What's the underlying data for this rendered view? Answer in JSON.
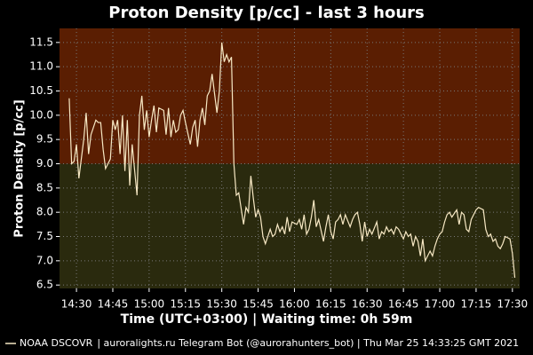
{
  "chart_data": {
    "type": "line",
    "title": "Proton Density [p/cc] - last 3 hours",
    "y_label": "Proton Density [p/cc]",
    "x_label": "Time (UTC+03:00) | Waiting time: 0h 59m",
    "footer": "| auroralights.ru Telegram Bot (@aurorahunters_bot) | Thu Mar 25 14:33:25 GMT 2021",
    "threshold": 9,
    "above_color": "#5a1e02",
    "below_color": "#2a2a0e",
    "grid": true,
    "xlim": [
      863,
      1053
    ],
    "ylim": [
      6.43,
      11.79
    ],
    "xticks": [
      {
        "value": 870,
        "label": "14:30"
      },
      {
        "value": 885,
        "label": "14:45"
      },
      {
        "value": 900,
        "label": "15:00"
      },
      {
        "value": 915,
        "label": "15:15"
      },
      {
        "value": 930,
        "label": "15:30"
      },
      {
        "value": 945,
        "label": "15:45"
      },
      {
        "value": 960,
        "label": "16:00"
      },
      {
        "value": 975,
        "label": "16:15"
      },
      {
        "value": 990,
        "label": "16:30"
      },
      {
        "value": 1005,
        "label": "16:45"
      },
      {
        "value": 1020,
        "label": "17:00"
      },
      {
        "value": 1035,
        "label": "17:15"
      },
      {
        "value": 1050,
        "label": "17:30"
      }
    ],
    "yticks": [
      6.5,
      {
        "value": 7,
        "label": "7.0"
      },
      7.5,
      {
        "value": 8,
        "label": "8.0"
      },
      8.5,
      {
        "value": 9,
        "label": "9.0"
      },
      9.5,
      {
        "value": 10,
        "label": "10.0"
      },
      10.5,
      {
        "value": 11,
        "label": "11.0"
      },
      11.5
    ],
    "x": [
      867,
      868,
      869,
      870,
      871,
      873,
      874,
      875,
      876,
      877,
      878,
      879,
      880,
      881,
      882,
      884,
      885,
      886,
      887,
      888,
      889,
      890,
      891,
      892,
      893,
      895,
      896,
      897,
      898,
      899,
      900,
      901,
      902,
      903,
      904,
      906,
      907,
      908,
      909,
      910,
      911,
      912,
      913,
      914,
      915,
      917,
      918,
      919,
      920,
      921,
      922,
      923,
      924,
      925,
      926,
      928,
      929,
      930,
      931,
      932,
      933,
      934,
      935,
      936,
      937,
      939,
      940,
      941,
      942,
      943,
      944,
      945,
      946,
      947,
      948,
      950,
      951,
      952,
      953,
      954,
      955,
      956,
      957,
      958,
      959,
      961,
      962,
      963,
      964,
      965,
      966,
      967,
      968,
      969,
      970,
      972,
      973,
      974,
      975,
      976,
      977,
      978,
      979,
      980,
      981,
      983,
      984,
      985,
      986,
      987,
      988,
      989,
      990,
      991,
      992,
      994,
      995,
      996,
      997,
      998,
      999,
      1000,
      1001,
      1002,
      1003,
      1005,
      1006,
      1007,
      1008,
      1009,
      1010,
      1011,
      1012,
      1013,
      1014,
      1016,
      1017,
      1018,
      1019,
      1020,
      1021,
      1022,
      1023,
      1024,
      1025,
      1027,
      1028,
      1029,
      1030,
      1031,
      1032,
      1033,
      1034,
      1035,
      1036,
      1038,
      1039,
      1040,
      1041,
      1042,
      1043,
      1044,
      1045,
      1046,
      1047,
      1049,
      1050,
      1051
    ],
    "series": [
      {
        "name": "NOAA DSCOVR",
        "color": "#f7e8c4",
        "values": [
          10.35,
          9.0,
          9.05,
          9.4,
          8.7,
          9.5,
          10.05,
          9.2,
          9.6,
          9.75,
          9.9,
          9.85,
          9.85,
          9.3,
          8.9,
          9.1,
          9.9,
          9.7,
          9.9,
          9.2,
          10.0,
          8.85,
          9.9,
          8.55,
          9.4,
          8.35,
          10.0,
          10.4,
          9.7,
          10.1,
          9.55,
          9.9,
          10.2,
          9.65,
          10.15,
          10.1,
          9.6,
          10.15,
          9.55,
          9.9,
          9.65,
          9.7,
          10.0,
          10.1,
          9.85,
          9.4,
          9.75,
          9.9,
          9.35,
          9.9,
          10.15,
          9.8,
          10.4,
          10.5,
          10.85,
          10.05,
          10.5,
          11.5,
          11.1,
          11.25,
          11.1,
          11.2,
          9.0,
          8.35,
          8.4,
          7.75,
          8.1,
          8.0,
          8.75,
          8.3,
          7.9,
          8.05,
          7.9,
          7.5,
          7.35,
          7.65,
          7.5,
          7.55,
          7.75,
          7.6,
          7.7,
          7.55,
          7.9,
          7.6,
          7.8,
          7.75,
          7.85,
          7.65,
          7.95,
          7.55,
          7.65,
          7.9,
          8.25,
          7.7,
          7.85,
          7.4,
          7.7,
          7.95,
          7.6,
          7.45,
          7.8,
          7.85,
          7.95,
          7.75,
          7.95,
          7.7,
          7.85,
          7.95,
          8.0,
          7.75,
          7.4,
          7.8,
          7.5,
          7.65,
          7.55,
          7.8,
          7.45,
          7.6,
          7.55,
          7.7,
          7.6,
          7.65,
          7.55,
          7.7,
          7.65,
          7.45,
          7.6,
          7.5,
          7.55,
          7.3,
          7.5,
          7.4,
          7.1,
          7.45,
          7.0,
          7.2,
          7.1,
          7.3,
          7.45,
          7.55,
          7.6,
          7.8,
          7.95,
          8.0,
          7.9,
          8.05,
          7.75,
          8.0,
          7.95,
          7.65,
          7.6,
          7.85,
          7.95,
          8.05,
          8.1,
          8.05,
          7.65,
          7.5,
          7.55,
          7.4,
          7.45,
          7.3,
          7.25,
          7.35,
          7.5,
          7.45,
          7.15,
          6.65
        ]
      }
    ]
  }
}
